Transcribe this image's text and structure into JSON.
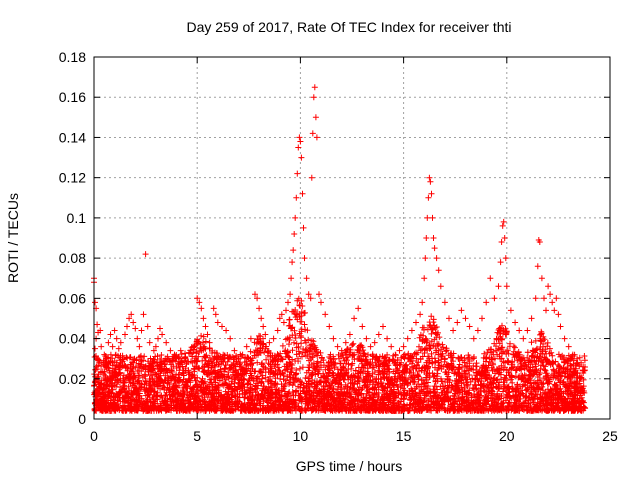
{
  "chart_data": {
    "type": "scatter",
    "title": "Day 259 of 2017, Rate Of TEC Index for receiver thti",
    "xlabel": "GPS time / hours",
    "ylabel": "ROTI / TECUs",
    "xlim": [
      0,
      25
    ],
    "ylim": [
      0,
      0.18
    ],
    "x_ticks": [
      0,
      5,
      10,
      15,
      20,
      25
    ],
    "x_tick_labels": [
      "0",
      "5",
      "10",
      "15",
      "20",
      "25"
    ],
    "y_ticks": [
      0,
      0.02,
      0.04,
      0.06,
      0.08,
      0.1,
      0.12,
      0.14,
      0.16,
      0.18
    ],
    "y_tick_labels": [
      "0",
      "0.02",
      "0.04",
      "0.06",
      "0.08",
      "0.1",
      "0.12",
      "0.14",
      "0.16",
      "0.18"
    ],
    "grid": true,
    "marker": "+",
    "color": "#ff0000",
    "series": [
      {
        "points": [
          [
            0.0,
            0.07
          ],
          [
            0.0,
            0.068
          ],
          [
            0.05,
            0.058
          ],
          [
            0.1,
            0.055
          ],
          [
            0.15,
            0.047
          ],
          [
            0.2,
            0.043
          ],
          [
            0.1,
            0.04
          ],
          [
            0.05,
            0.035
          ],
          [
            0.15,
            0.03
          ],
          [
            0.25,
            0.028
          ],
          [
            0.3,
            0.044
          ],
          [
            0.35,
            0.036
          ],
          [
            0.5,
            0.032
          ],
          [
            0.6,
            0.03
          ],
          [
            0.7,
            0.038
          ],
          [
            0.8,
            0.042
          ],
          [
            0.9,
            0.036
          ],
          [
            1.0,
            0.044
          ],
          [
            1.1,
            0.04
          ],
          [
            1.2,
            0.035
          ],
          [
            1.3,
            0.038
          ],
          [
            1.5,
            0.042
          ],
          [
            1.6,
            0.046
          ],
          [
            1.7,
            0.05
          ],
          [
            1.8,
            0.052
          ],
          [
            1.9,
            0.048
          ],
          [
            2.0,
            0.045
          ],
          [
            2.1,
            0.04
          ],
          [
            2.2,
            0.036
          ],
          [
            2.3,
            0.044
          ],
          [
            2.4,
            0.052
          ],
          [
            2.5,
            0.082
          ],
          [
            2.6,
            0.046
          ],
          [
            2.7,
            0.038
          ],
          [
            2.9,
            0.034
          ],
          [
            3.0,
            0.036
          ],
          [
            3.1,
            0.04
          ],
          [
            3.2,
            0.045
          ],
          [
            3.3,
            0.042
          ],
          [
            3.5,
            0.038
          ],
          [
            3.7,
            0.034
          ],
          [
            3.9,
            0.032
          ],
          [
            4.0,
            0.03
          ],
          [
            4.2,
            0.034
          ],
          [
            4.4,
            0.03
          ],
          [
            4.6,
            0.033
          ],
          [
            4.8,
            0.036
          ],
          [
            5.0,
            0.06
          ],
          [
            5.1,
            0.058
          ],
          [
            5.2,
            0.055
          ],
          [
            5.3,
            0.05
          ],
          [
            5.4,
            0.046
          ],
          [
            5.5,
            0.042
          ],
          [
            5.6,
            0.038
          ],
          [
            5.8,
            0.055
          ],
          [
            5.9,
            0.052
          ],
          [
            6.0,
            0.048
          ],
          [
            6.2,
            0.046
          ],
          [
            6.4,
            0.044
          ],
          [
            6.6,
            0.04
          ],
          [
            6.8,
            0.034
          ],
          [
            7.0,
            0.03
          ],
          [
            7.2,
            0.032
          ],
          [
            7.4,
            0.036
          ],
          [
            7.6,
            0.04
          ],
          [
            7.8,
            0.062
          ],
          [
            7.9,
            0.06
          ],
          [
            8.0,
            0.055
          ],
          [
            8.1,
            0.05
          ],
          [
            8.2,
            0.046
          ],
          [
            8.3,
            0.042
          ],
          [
            8.5,
            0.038
          ],
          [
            8.7,
            0.04
          ],
          [
            8.9,
            0.044
          ],
          [
            9.0,
            0.05
          ],
          [
            9.1,
            0.052
          ],
          [
            9.2,
            0.048
          ],
          [
            9.3,
            0.054
          ],
          [
            9.4,
            0.058
          ],
          [
            9.5,
            0.062
          ],
          [
            9.55,
            0.07
          ],
          [
            9.6,
            0.078
          ],
          [
            9.65,
            0.084
          ],
          [
            9.7,
            0.092
          ],
          [
            9.75,
            0.1
          ],
          [
            9.8,
            0.11
          ],
          [
            9.85,
            0.122
          ],
          [
            9.9,
            0.135
          ],
          [
            9.95,
            0.14
          ],
          [
            10.0,
            0.138
          ],
          [
            10.05,
            0.13
          ],
          [
            10.1,
            0.112
          ],
          [
            10.15,
            0.095
          ],
          [
            10.2,
            0.08
          ],
          [
            10.3,
            0.07
          ],
          [
            10.4,
            0.062
          ],
          [
            10.5,
            0.06
          ],
          [
            10.55,
            0.12
          ],
          [
            10.6,
            0.142
          ],
          [
            10.65,
            0.16
          ],
          [
            10.7,
            0.165
          ],
          [
            10.75,
            0.15
          ],
          [
            10.8,
            0.14
          ],
          [
            10.9,
            0.062
          ],
          [
            11.0,
            0.058
          ],
          [
            11.2,
            0.052
          ],
          [
            11.4,
            0.046
          ],
          [
            11.6,
            0.04
          ],
          [
            11.8,
            0.036
          ],
          [
            12.0,
            0.034
          ],
          [
            12.2,
            0.038
          ],
          [
            12.4,
            0.042
          ],
          [
            12.6,
            0.05
          ],
          [
            12.8,
            0.055
          ],
          [
            13.0,
            0.046
          ],
          [
            13.2,
            0.04
          ],
          [
            13.4,
            0.036
          ],
          [
            13.6,
            0.038
          ],
          [
            13.8,
            0.042
          ],
          [
            14.0,
            0.046
          ],
          [
            14.2,
            0.04
          ],
          [
            14.4,
            0.036
          ],
          [
            14.6,
            0.032
          ],
          [
            14.8,
            0.034
          ],
          [
            15.0,
            0.036
          ],
          [
            15.2,
            0.04
          ],
          [
            15.4,
            0.044
          ],
          [
            15.6,
            0.048
          ],
          [
            15.8,
            0.052
          ],
          [
            15.9,
            0.058
          ],
          [
            16.0,
            0.07
          ],
          [
            16.05,
            0.08
          ],
          [
            16.1,
            0.09
          ],
          [
            16.15,
            0.1
          ],
          [
            16.2,
            0.11
          ],
          [
            16.25,
            0.12
          ],
          [
            16.3,
            0.118
          ],
          [
            16.35,
            0.112
          ],
          [
            16.4,
            0.1
          ],
          [
            16.45,
            0.09
          ],
          [
            16.5,
            0.085
          ],
          [
            16.6,
            0.08
          ],
          [
            16.7,
            0.074
          ],
          [
            16.8,
            0.066
          ],
          [
            17.0,
            0.058
          ],
          [
            17.2,
            0.05
          ],
          [
            17.4,
            0.044
          ],
          [
            17.6,
            0.048
          ],
          [
            17.8,
            0.054
          ],
          [
            18.0,
            0.05
          ],
          [
            18.2,
            0.046
          ],
          [
            18.4,
            0.04
          ],
          [
            18.6,
            0.044
          ],
          [
            18.8,
            0.05
          ],
          [
            19.0,
            0.058
          ],
          [
            19.2,
            0.07
          ],
          [
            19.4,
            0.06
          ],
          [
            19.6,
            0.066
          ],
          [
            19.7,
            0.078
          ],
          [
            19.75,
            0.088
          ],
          [
            19.8,
            0.096
          ],
          [
            19.85,
            0.098
          ],
          [
            19.9,
            0.09
          ],
          [
            19.95,
            0.08
          ],
          [
            20.0,
            0.066
          ],
          [
            20.2,
            0.054
          ],
          [
            20.4,
            0.048
          ],
          [
            20.6,
            0.044
          ],
          [
            20.8,
            0.04
          ],
          [
            21.0,
            0.044
          ],
          [
            21.2,
            0.05
          ],
          [
            21.4,
            0.06
          ],
          [
            21.5,
            0.076
          ],
          [
            21.55,
            0.089
          ],
          [
            21.6,
            0.088
          ],
          [
            21.7,
            0.07
          ],
          [
            21.8,
            0.06
          ],
          [
            21.9,
            0.054
          ],
          [
            22.0,
            0.066
          ],
          [
            22.1,
            0.062
          ],
          [
            22.2,
            0.058
          ],
          [
            22.3,
            0.054
          ],
          [
            22.4,
            0.06
          ],
          [
            22.5,
            0.052
          ],
          [
            22.6,
            0.046
          ],
          [
            22.8,
            0.04
          ],
          [
            23.0,
            0.036
          ],
          [
            23.2,
            0.032
          ],
          [
            23.4,
            0.03
          ],
          [
            23.6,
            0.028
          ],
          [
            23.7,
            0.026
          ],
          [
            23.75,
            0.024
          ]
        ]
      }
    ]
  }
}
